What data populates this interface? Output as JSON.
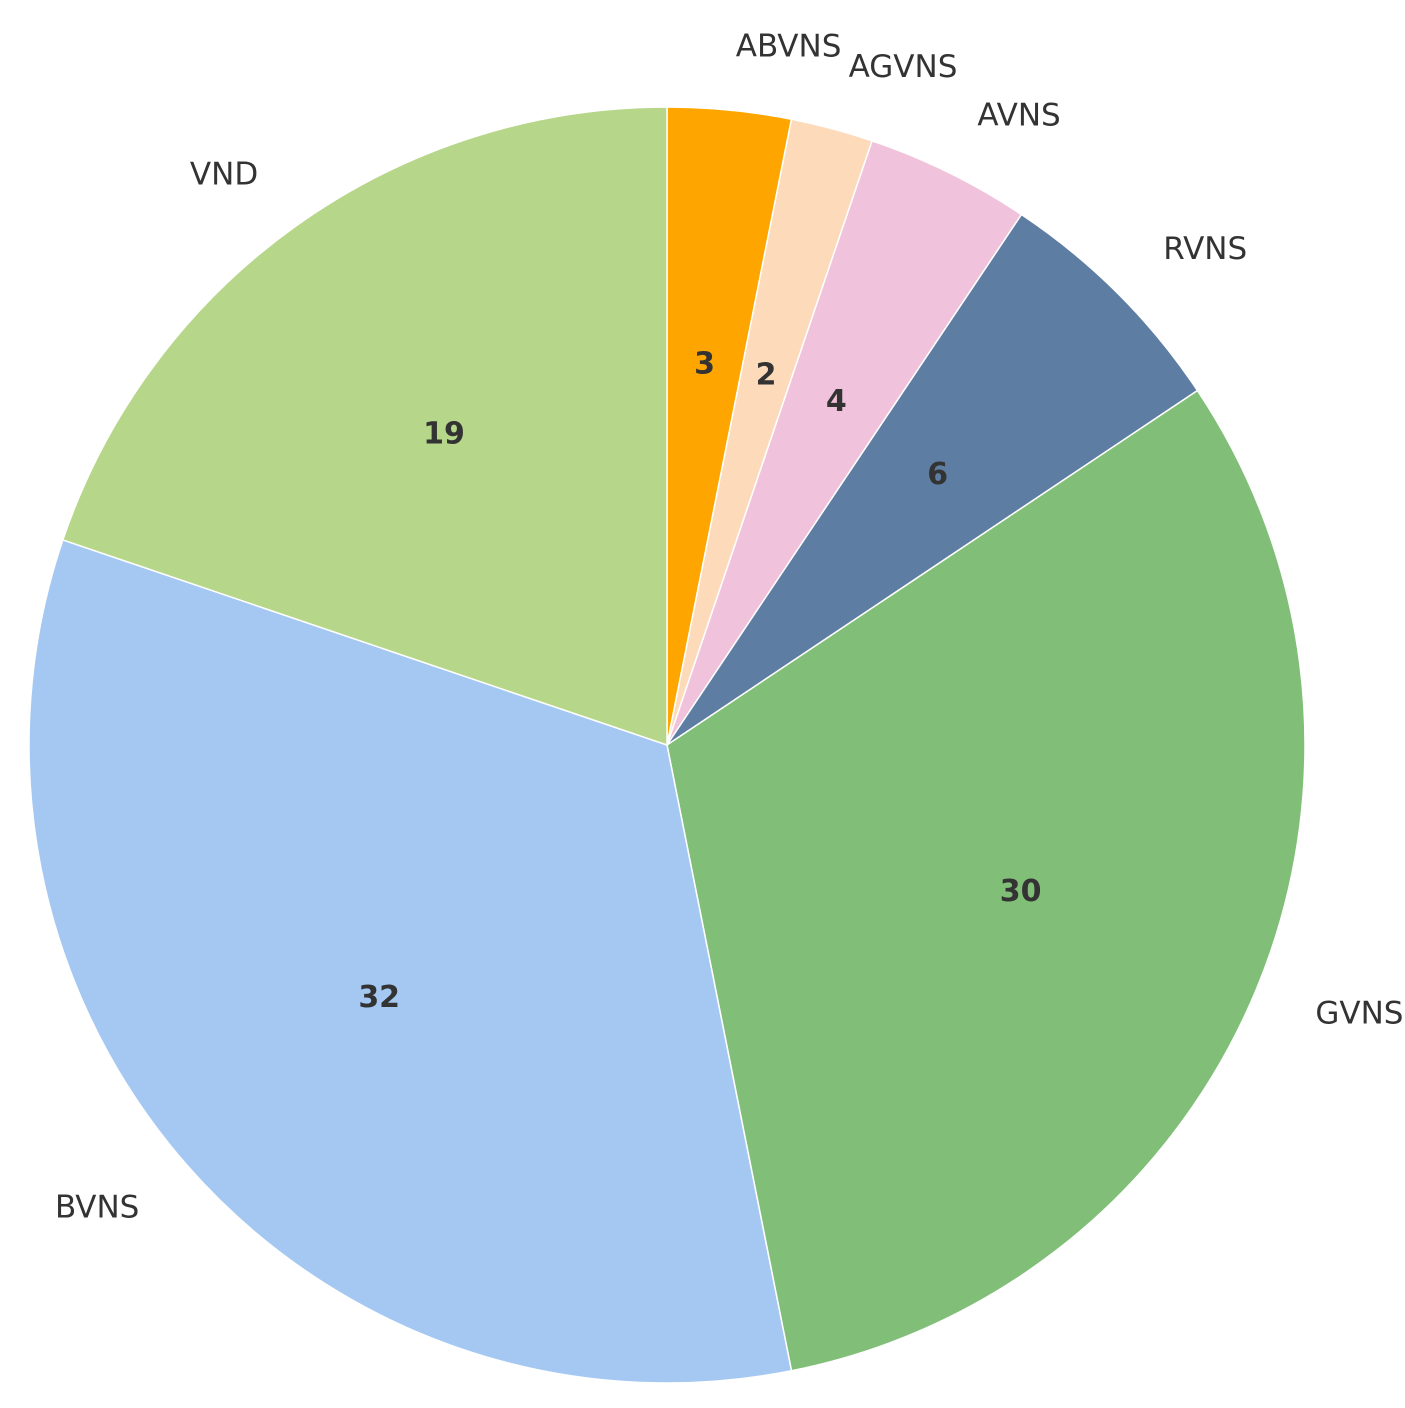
{
  "chart_data": {
    "type": "pie",
    "start": "top",
    "direction": "clockwise",
    "categories": [
      "ABVNS",
      "AGVNS",
      "AVNS",
      "RVNS",
      "GVNS",
      "BVNS",
      "VND"
    ],
    "values": [
      3,
      2,
      4,
      6,
      30,
      32,
      19
    ],
    "value_labels": [
      "3",
      "2",
      "4",
      "6",
      "30",
      "32",
      "19"
    ],
    "colors": [
      "#ffa500",
      "#fddbba",
      "#f0c2dc",
      "#5d7da2",
      "#81bf79",
      "#a4c8f2",
      "#b6d68a"
    ]
  }
}
